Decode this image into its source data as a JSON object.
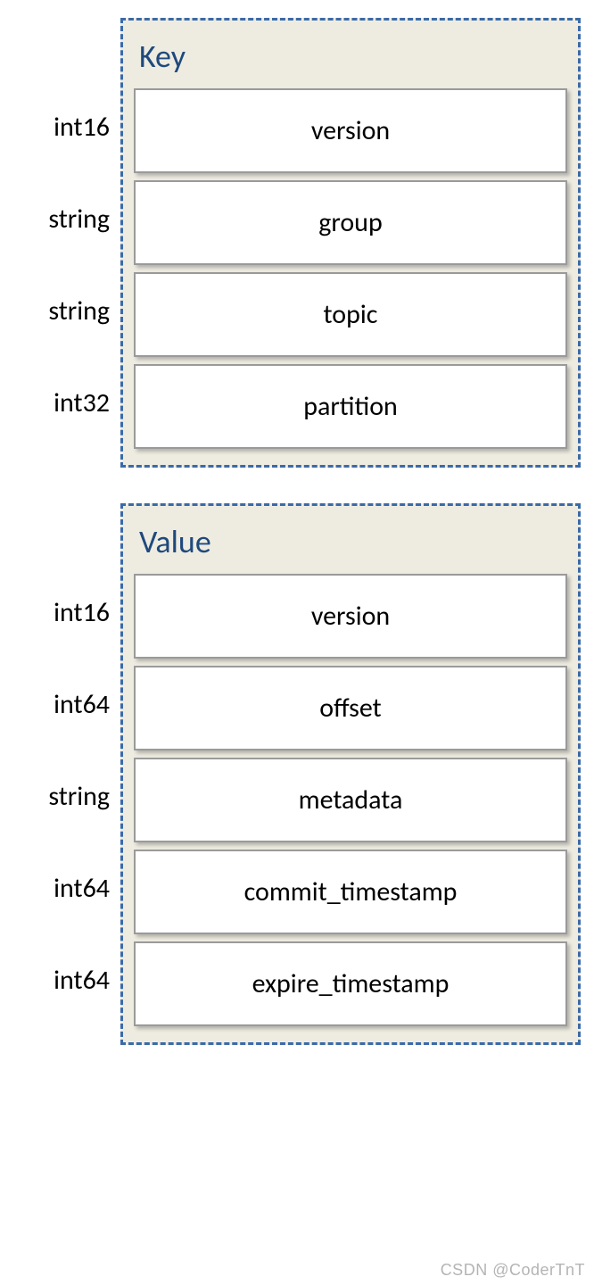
{
  "key_struct": {
    "title": "Key",
    "fields": [
      {
        "type": "int16",
        "name": "version"
      },
      {
        "type": "string",
        "name": "group"
      },
      {
        "type": "string",
        "name": "topic"
      },
      {
        "type": "int32",
        "name": "partition"
      }
    ]
  },
  "value_struct": {
    "title": "Value",
    "fields": [
      {
        "type": "int16",
        "name": "version"
      },
      {
        "type": "int64",
        "name": "offset"
      },
      {
        "type": "string",
        "name": "metadata"
      },
      {
        "type": "int64",
        "name": "commit_timestamp"
      },
      {
        "type": "int64",
        "name": "expire_timestamp"
      }
    ]
  },
  "watermark": "CSDN @CoderTnT",
  "style": {
    "type": "struct-diagram",
    "border_color": "#3a6aa8",
    "border_style": "dashed",
    "box_background": "#eeece1",
    "field_background": "#ffffff",
    "field_border": "#9a9a9a",
    "title_color": "#1f497d",
    "text_color": "#000000",
    "title_fontsize": 36,
    "label_fontsize": 30,
    "field_height": 95,
    "type_col_width": 120,
    "shadow": "3px 3px 4px rgba(0,0,0,0.25)"
  }
}
